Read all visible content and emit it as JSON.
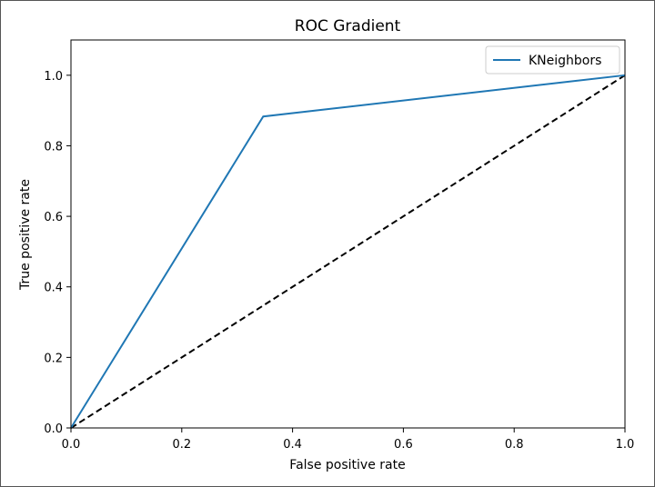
{
  "chart_data": {
    "type": "line",
    "title": "ROC Gradient",
    "xlabel": "False positive rate",
    "ylabel": "True positive rate",
    "xlim": [
      0.0,
      1.0
    ],
    "ylim": [
      0.0,
      1.1
    ],
    "xticks": [
      0.0,
      0.2,
      0.4,
      0.6,
      0.8,
      1.0
    ],
    "xtick_labels": [
      "0.0",
      "0.2",
      "0.4",
      "0.6",
      "0.8",
      "1.0"
    ],
    "yticks": [
      0.0,
      0.2,
      0.4,
      0.6,
      0.8,
      1.0
    ],
    "ytick_labels": [
      "0.0",
      "0.2",
      "0.4",
      "0.6",
      "0.8",
      "1.0"
    ],
    "grid": false,
    "legend_position": "top-right",
    "series": [
      {
        "name": "KNeighbors",
        "color": "#1f77b4",
        "style": "solid",
        "x": [
          0.0,
          0.347,
          1.0
        ],
        "y": [
          0.0,
          0.883,
          1.0
        ]
      }
    ],
    "reference_line": {
      "color": "#000000",
      "style": "dashed",
      "x": [
        0.0,
        1.0
      ],
      "y": [
        0.0,
        1.0
      ]
    }
  }
}
